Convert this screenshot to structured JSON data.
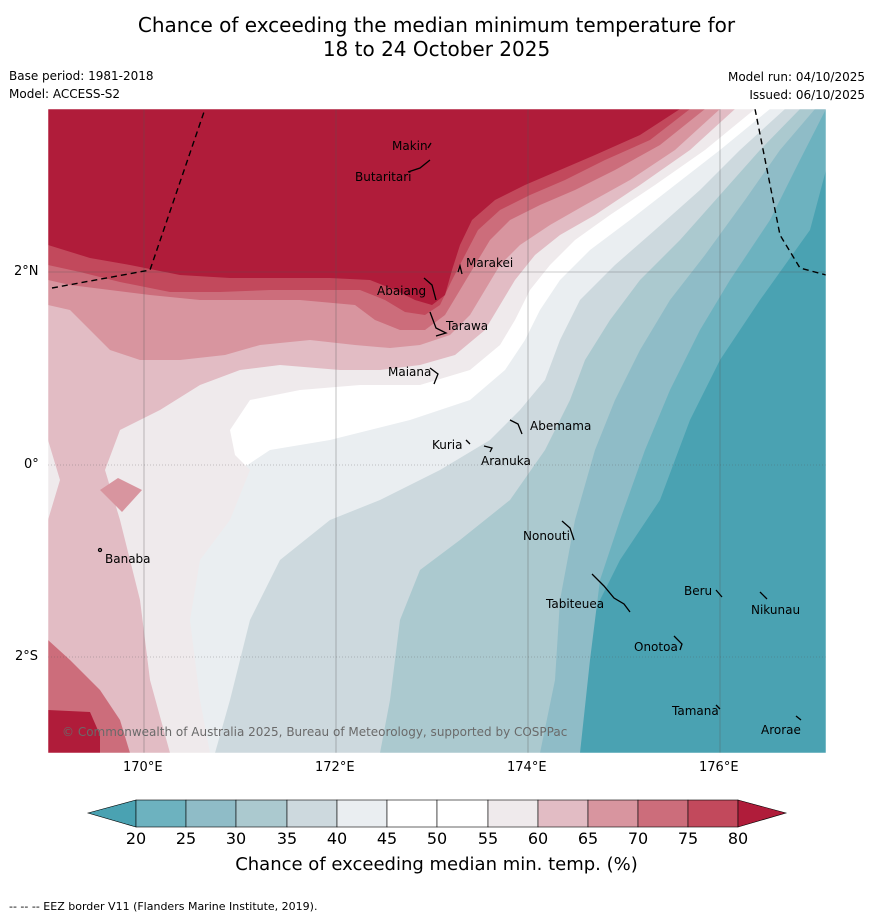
{
  "title": {
    "line1": "Chance of exceeding the median minimum temperature for",
    "line2": "18 to 24 October 2025"
  },
  "meta": {
    "base_period": "Base period: 1981-2018",
    "model": "Model: ACCESS-S2",
    "model_run": "Model run: 04/10/2025",
    "issued": "Issued: 06/10/2025"
  },
  "axes": {
    "lat_labels": [
      "2°N",
      "0°",
      "2°S"
    ],
    "lon_labels": [
      "170°E",
      "172°E",
      "174°E",
      "176°E"
    ]
  },
  "places": [
    {
      "name": "Makin"
    },
    {
      "name": "Butaritari"
    },
    {
      "name": "Marakei"
    },
    {
      "name": "Abaiang"
    },
    {
      "name": "Tarawa"
    },
    {
      "name": "Maiana"
    },
    {
      "name": "Abemama"
    },
    {
      "name": "Kuria"
    },
    {
      "name": "Aranuka"
    },
    {
      "name": "Banaba"
    },
    {
      "name": "Nonouti"
    },
    {
      "name": "Beru"
    },
    {
      "name": "Nikunau"
    },
    {
      "name": "Tabiteuea"
    },
    {
      "name": "Onotoa"
    },
    {
      "name": "Tamana"
    },
    {
      "name": "Arorae"
    }
  ],
  "copyright": "© Commonwealth of Australia 2025, Bureau of Meteorology, supported by COSPPac",
  "colorbar": {
    "labels": [
      "20",
      "25",
      "30",
      "35",
      "40",
      "45",
      "50",
      "55",
      "60",
      "65",
      "70",
      "75",
      "80"
    ],
    "colors": {
      "below20": "#4aa2b2",
      "c20": "#6db2bf",
      "c25": "#8fbcc7",
      "c30": "#abc9cf",
      "c35": "#cdd9de",
      "c40": "#eaeef1",
      "c45": "#ffffff",
      "c50": "#ffffff",
      "c55": "#efeaec",
      "c60": "#e2bcc4",
      "c65": "#d8959f",
      "c70": "#cc6d7b",
      "c75": "#c2495c",
      "above80": "#b01c3a"
    },
    "title": "Chance of exceeding median min. temp. (%)"
  },
  "footer": "--  --  -- EEZ border V11 (Flanders Marine Institute, 2019)."
}
